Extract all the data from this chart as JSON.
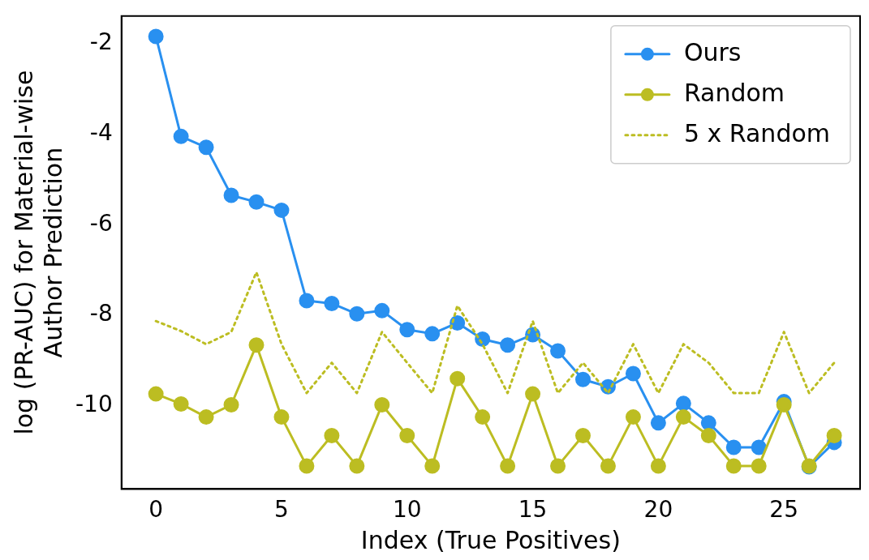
{
  "chart_data": {
    "type": "line",
    "xlabel": "Index (True Positives)",
    "ylabel": "log (PR-AUC) for Material-wise\nAuthor Prediction",
    "x": [
      0,
      1,
      2,
      3,
      4,
      5,
      6,
      7,
      8,
      9,
      10,
      11,
      12,
      13,
      14,
      15,
      16,
      17,
      18,
      19,
      20,
      21,
      22,
      23,
      24,
      25,
      26,
      27
    ],
    "series": [
      {
        "name": "Ours",
        "color": "#2990f0",
        "values": [
          -1.84,
          -4.05,
          -4.29,
          -5.35,
          -5.5,
          -5.68,
          -7.68,
          -7.74,
          -7.97,
          -7.9,
          -8.32,
          -8.41,
          -8.17,
          -8.53,
          -8.66,
          -8.43,
          -8.79,
          -9.42,
          -9.58,
          -9.29,
          -10.38,
          -9.95,
          -10.38,
          -10.92,
          -10.92,
          -9.91,
          -11.35,
          -10.81
        ]
      },
      {
        "name": "Random",
        "color": "#bcbd22",
        "values": [
          -9.74,
          -9.96,
          -10.25,
          -9.98,
          -8.66,
          -10.25,
          -11.33,
          -10.66,
          -11.33,
          -9.98,
          -10.66,
          -11.33,
          -9.4,
          -10.25,
          -11.33,
          -9.74,
          -11.33,
          -10.66,
          -11.33,
          -10.25,
          -11.33,
          -10.25,
          -10.66,
          -11.33,
          -11.33,
          -9.98,
          -11.33,
          -10.66
        ]
      },
      {
        "name": "5 x Random",
        "color": "#bcbd22",
        "marker": "none",
        "line_style": "dotted",
        "values": [
          -8.13,
          -8.35,
          -8.64,
          -8.37,
          -7.05,
          -8.64,
          -9.72,
          -9.05,
          -9.72,
          -8.37,
          -9.05,
          -9.72,
          -7.79,
          -8.64,
          -9.72,
          -8.13,
          -9.72,
          -9.05,
          -9.72,
          -8.64,
          -9.72,
          -8.64,
          -9.05,
          -9.72,
          -9.72,
          -8.37,
          -9.72,
          -9.05
        ]
      }
    ],
    "xlim": [
      -1.37,
      28.03
    ],
    "xticks": [
      0,
      5,
      10,
      15,
      20,
      25
    ],
    "ylim": [
      -11.84,
      -1.39
    ],
    "yticks": [
      -10,
      -8,
      -6,
      -4,
      -2
    ],
    "grid": false,
    "legend": "top right",
    "marker": "circle",
    "line_style": "solid"
  }
}
